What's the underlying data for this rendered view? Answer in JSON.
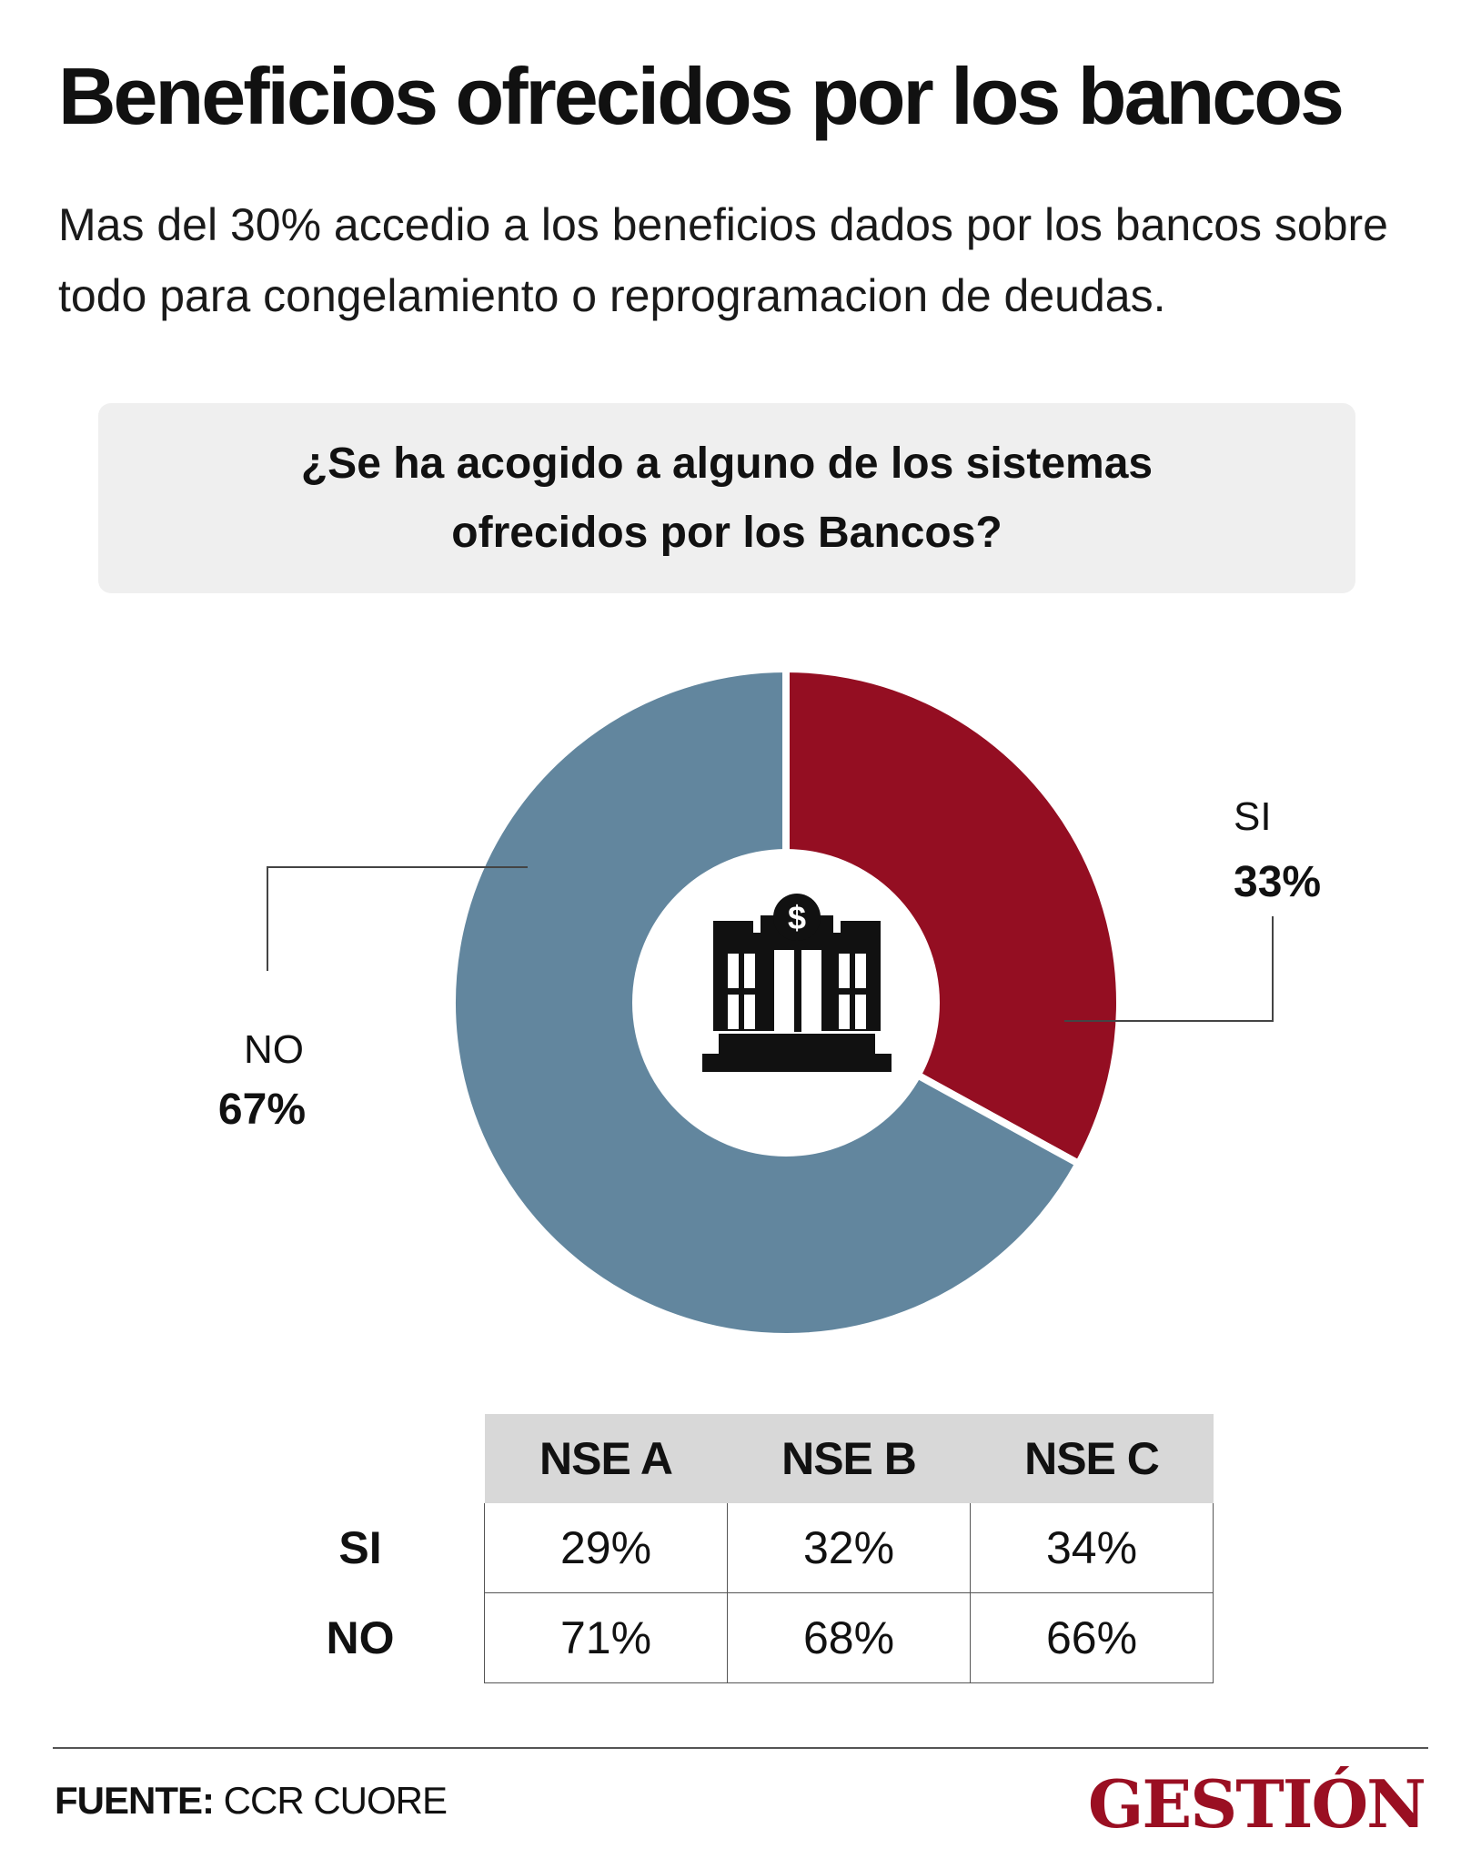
{
  "header": {
    "title": "Beneficios ofrecidos por los bancos",
    "subtitle": "Mas del 30% accedio a los beneficios dados por los bancos sobre todo para congelamiento o reprogramacion de deudas."
  },
  "question": "¿Se ha acogido a alguno de los sistemas ofrecidos por los Bancos?",
  "chart_data": [
    {
      "type": "pie",
      "title": "¿Se ha acogido a alguno de los sistemas ofrecidos por los Bancos?",
      "categories": [
        "SI",
        "NO"
      ],
      "values": [
        33,
        67
      ],
      "value_labels": [
        "33%",
        "67%"
      ],
      "colors": [
        "#940e22",
        "#62869e"
      ],
      "center_icon": "bank-building-icon"
    },
    {
      "type": "table",
      "columns": [
        "NSE A",
        "NSE B",
        "NSE C"
      ],
      "rows": [
        {
          "label": "SI",
          "values": [
            "29%",
            "32%",
            "34%"
          ]
        },
        {
          "label": "NO",
          "values": [
            "71%",
            "68%",
            "66%"
          ]
        }
      ]
    }
  ],
  "footer": {
    "source_label": "FUENTE:",
    "source_value": "CCR CUORE",
    "logo": "GESTIÓN"
  }
}
